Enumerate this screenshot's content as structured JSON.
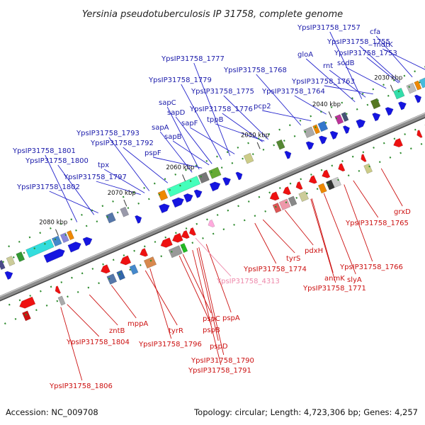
{
  "title": "Yersinia pseudotuberculosis IP 31758, complete genome",
  "footer": {
    "accession": "Accession: NC_009708",
    "summary": "Topology: circular; Length: 4,723,306 bp; Genes: 4,257"
  },
  "colors": {
    "forward_label": "#1a1aaa",
    "reverse_label": "#cc1111",
    "pseudo_label": "#ee88aa",
    "backbone": "#8c8c8c"
  },
  "scale_ticks": [
    "2030 kbp",
    "2040 kbp",
    "2050 kbp",
    "2060 kbp",
    "2070 kbp",
    "2080 kbp"
  ],
  "forward_genes": [
    "YpsIP31758_1757",
    "cfa",
    "YpsIP31758_1755",
    "mdtK",
    "gloA",
    "YpsIP31758_1753",
    "rnt",
    "sodB",
    "YpsIP31758_1768",
    "YpsIP31758_1763",
    "YpsIP31758_1764",
    "YpsIP31758_1777",
    "YpsIP31758_1779",
    "YpsIP31758_1775",
    "pcp2",
    "sapC",
    "sapD",
    "YpsIP31758_1776",
    "sapF",
    "tppB",
    "sapA",
    "sapB",
    "YpsIP31758_1793",
    "YpsIP31758_1792",
    "pspF",
    "YpsIP31758_1801",
    "YpsIP31758_1800",
    "tpx",
    "YpsIP31758_1797",
    "YpsIP31758_1802"
  ],
  "reverse_genes": [
    "grxD",
    "YpsIP31758_1765",
    "YpsIP31758_1766",
    "slyA",
    "anmK",
    "YpsIP31758_1771",
    "pdxH",
    "tyrS",
    "YpsIP31758_1774",
    "pspA",
    "pspC",
    "pspB",
    "pspD",
    "YpsIP31758_1790",
    "YpsIP31758_1791",
    "tyrR",
    "YpsIP31758_1796",
    "mppA",
    "zntB",
    "YpsIP31758_1804",
    "YpsIP31758_1806"
  ],
  "pseudo_genes": [
    "YpsIP31758_4313"
  ]
}
